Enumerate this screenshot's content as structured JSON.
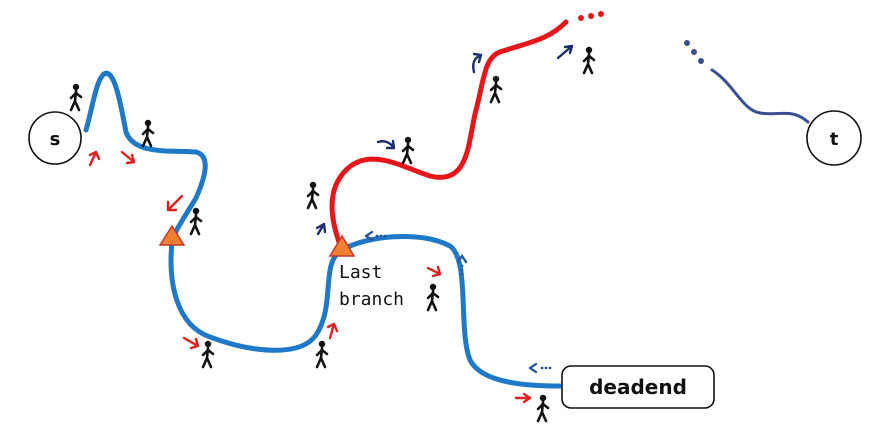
{
  "nodes": {
    "start": {
      "label": "s"
    },
    "target": {
      "label": "t"
    },
    "deadend": {
      "label": "deadend"
    }
  },
  "annotation": {
    "line1": "Last",
    "line2": "branch"
  },
  "icons": {
    "walker": "walking-person-icon",
    "arrow": "direction-arrow-icon",
    "branch": "branch-triangle-icon"
  },
  "colors": {
    "explored_path": "#1f78c8",
    "active_path": "#e8161b",
    "tail_path": "#3a4f8f",
    "branch_fill": "#f08030",
    "branch_stroke": "#c0392b",
    "arrow_red": "#e02020",
    "arrow_navy": "#1a2f6a",
    "arrow_blue_dotted": "#2a5a9a"
  }
}
